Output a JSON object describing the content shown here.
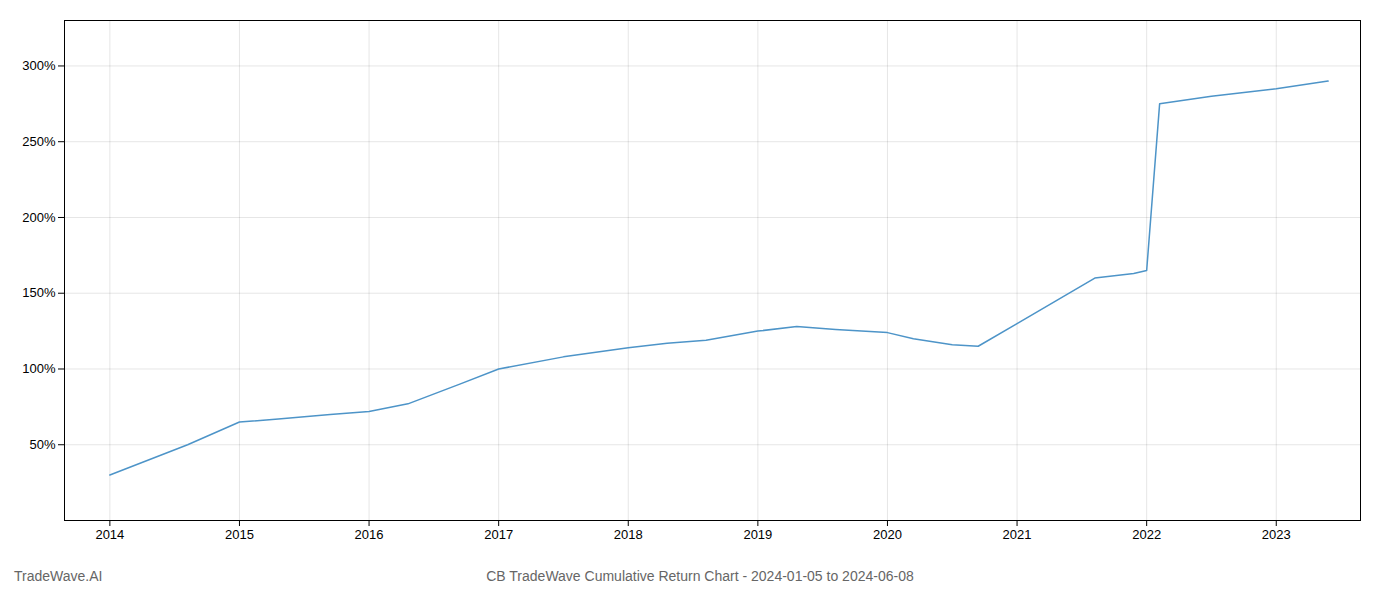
{
  "chart_data": {
    "type": "line",
    "title": "CB TradeWave Cumulative Return Chart - 2024-01-05 to 2024-06-08",
    "annotations": [
      "TradeWave.AI"
    ],
    "x": [
      2014.0,
      2014.6,
      2015.0,
      2015.3,
      2015.7,
      2016.0,
      2016.3,
      2016.7,
      2017.0,
      2017.5,
      2018.0,
      2018.3,
      2018.6,
      2019.0,
      2019.3,
      2019.6,
      2020.0,
      2020.2,
      2020.5,
      2020.7,
      2021.0,
      2021.3,
      2021.6,
      2021.9,
      2022.0,
      2022.1,
      2022.5,
      2022.8,
      2023.0,
      2023.4
    ],
    "values": [
      30,
      50,
      65,
      67,
      70,
      72,
      77,
      90,
      100,
      108,
      114,
      117,
      119,
      125,
      128,
      126,
      124,
      120,
      116,
      115,
      130,
      145,
      160,
      163,
      165,
      275,
      280,
      283,
      285,
      290
    ],
    "color": "#4d94c8",
    "xlim": [
      2013.65,
      2023.65
    ],
    "xticks": [
      2014,
      2015,
      2016,
      2017,
      2018,
      2019,
      2020,
      2021,
      2022,
      2023
    ],
    "ylim": [
      0,
      330
    ],
    "yticks": [
      {
        "value": 50,
        "label": "50%"
      },
      {
        "value": 100,
        "label": "100%"
      },
      {
        "value": 150,
        "label": "150%"
      },
      {
        "value": 200,
        "label": "200%"
      },
      {
        "value": 250,
        "label": "250%"
      },
      {
        "value": 300,
        "label": "300%"
      }
    ],
    "grid": true
  }
}
